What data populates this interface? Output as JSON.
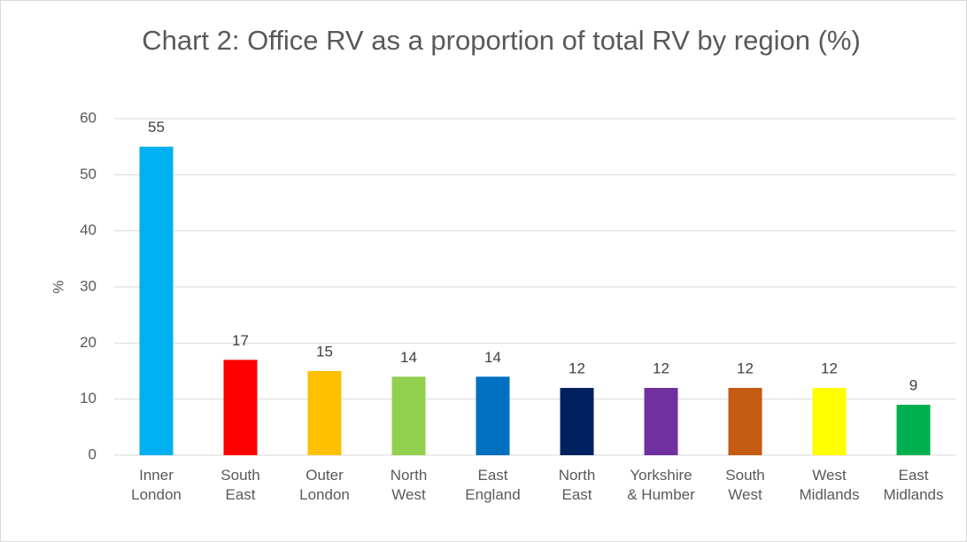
{
  "chart_data": {
    "type": "bar",
    "title": "Chart 2: Office RV as a proportion of total RV by region (%)",
    "y_label": "%",
    "categories": [
      "Inner London",
      "South East",
      "Outer London",
      "North West",
      "East England",
      "North East",
      "Yorkshire & Humber",
      "South West",
      "West Midlands",
      "East Midlands"
    ],
    "values": [
      55,
      17,
      15,
      14,
      14,
      12,
      12,
      12,
      12,
      9
    ],
    "colors": [
      "#00b0f0",
      "#ff0000",
      "#ffc000",
      "#92d050",
      "#0070c0",
      "#002060",
      "#7030a0",
      "#c55a11",
      "#ffff00",
      "#00b050"
    ],
    "ylim": [
      0,
      60
    ],
    "yticks": [
      0,
      10,
      20,
      30,
      40,
      50,
      60
    ],
    "grid": true
  }
}
